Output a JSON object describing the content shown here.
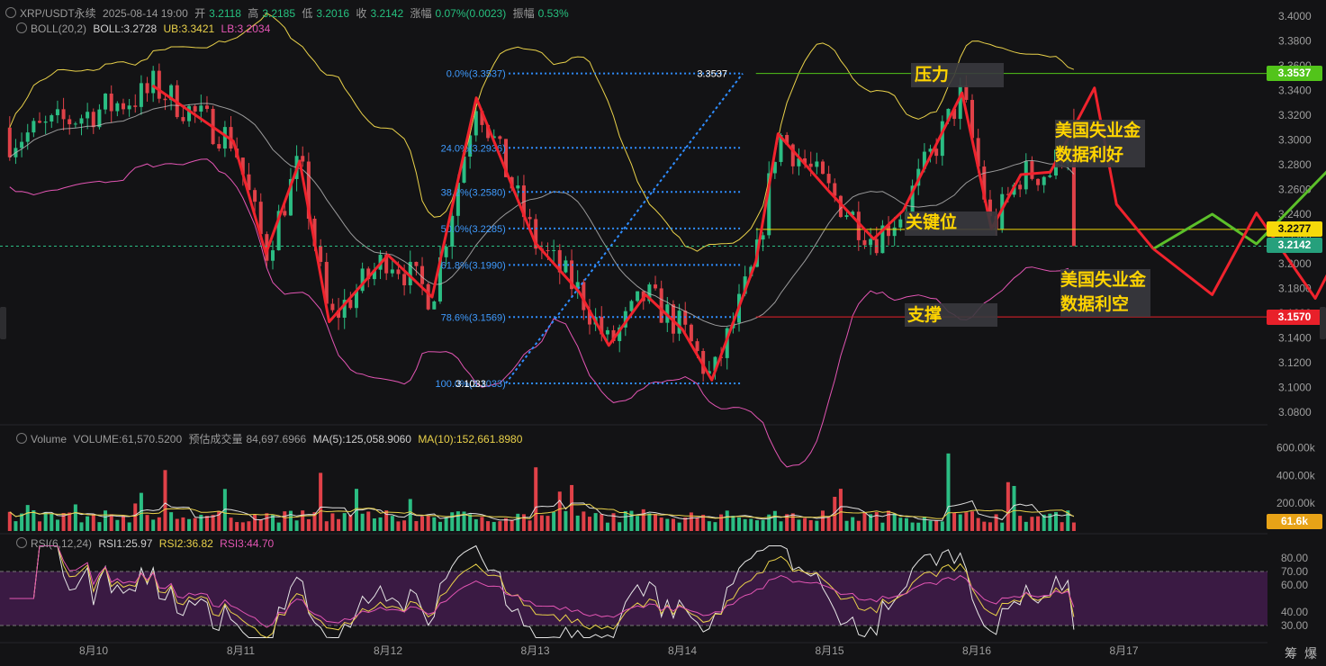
{
  "header": {
    "symbol": "XRP/USDT永续",
    "datetime": "2025-08-14 19:00",
    "open_label": "开",
    "open": "3.2118",
    "high_label": "高",
    "high": "3.2185",
    "low_label": "低",
    "low": "3.2016",
    "close_label": "收",
    "close": "3.2142",
    "change_label": "涨幅",
    "change": "0.07%(0.0023)",
    "amp_label": "振幅",
    "amp": "0.53%"
  },
  "boll": {
    "name": "BOLL(20,2)",
    "mid": "BOLL:3.2728",
    "ub": "UB:3.3421",
    "lb": "LB:3.2034"
  },
  "volume_header": {
    "name": "Volume",
    "volume": "VOLUME:61,570.5200",
    "est_label": "预估成交量",
    "est": "84,697.6966",
    "ma5": "MA(5):125,058.9060",
    "ma10": "MA(10):152,661.8980"
  },
  "rsi_header": {
    "name": "RSI(6,12,24)",
    "rsi1": "RSI1:25.97",
    "rsi2": "RSI2:36.82",
    "rsi3": "RSI3:44.70"
  },
  "annotations": {
    "resistance": "压力",
    "key_level": "关键位",
    "support": "支撑",
    "bullish_line1": "美国失业金",
    "bullish_line2": "数据利好",
    "bearish_line1": "美国失业金",
    "bearish_line2": "数据利空"
  },
  "price_tags": {
    "resistance": "3.3537",
    "key_level": "3.2277",
    "current": "3.2142",
    "support": "3.1570",
    "volume": "61.6k"
  },
  "toolbar": {
    "btn1": "筹",
    "btn2": "爆"
  },
  "colors": {
    "background": "#131315",
    "up_candle": "#2bbd83",
    "down_candle": "#e04148",
    "zigzag": "#f0232d",
    "fib_line": "#2f8dff",
    "boll_mid": "#bdbdbd",
    "boll_upper": "#e9d14a",
    "boll_lower": "#e255b3",
    "annotation_text": "#ffd400",
    "bull_path": "#5cc02a",
    "bear_path": "#f0232d",
    "resistance_tag": "#52c41a",
    "key_tag": "#f5d90a",
    "current_tag": "#26a07c",
    "support_tag": "#e8202a",
    "volume_tag": "#e8a317",
    "rsi_band": "#3a1a43"
  },
  "chart_data": [
    {
      "type": "candlestick",
      "title": "XRP/USDT永续",
      "price_axis": [
        "3.4000",
        "3.3800",
        "3.3600",
        "3.3400",
        "3.3200",
        "3.3000",
        "3.2800",
        "3.2600",
        "3.2400",
        "3.2200",
        "3.2000",
        "3.1800",
        "3.1600",
        "3.1400",
        "3.1200",
        "3.1000",
        "3.0800"
      ],
      "ylim": [
        3.076,
        3.404
      ],
      "x_tick_labels": [
        "8月10",
        "8月11",
        "8月12",
        "8月13",
        "8月14",
        "8月15",
        "8月16",
        "8月17"
      ],
      "fibonacci": [
        {
          "label": "0.0%(3.3537)",
          "value": 3.3537
        },
        {
          "label": "24.0%(3.2936)",
          "value": 3.2936
        },
        {
          "label": "38.2%(3.2580)",
          "value": 3.258
        },
        {
          "label": "50.0%(3.2285)",
          "value": 3.2285
        },
        {
          "label": "61.8%(3.1990)",
          "value": 3.199
        },
        {
          "label": "78.6%(3.1569)",
          "value": 3.1569
        },
        {
          "label": "100.0%(3.1033)",
          "value": 3.1033
        }
      ],
      "swing_high_label": "3.3537",
      "swing_low_label": "3.1033",
      "horizontal_levels": [
        {
          "name": "resistance",
          "value": 3.3537
        },
        {
          "name": "key_level",
          "value": 3.2277
        },
        {
          "name": "current",
          "value": 3.2142
        },
        {
          "name": "support",
          "value": 3.157
        }
      ],
      "zigzag": [
        {
          "t": 0.4,
          "v": 3.344
        },
        {
          "t": 0.95,
          "v": 3.299
        },
        {
          "t": 1.17,
          "v": 3.208
        },
        {
          "t": 1.4,
          "v": 3.283
        },
        {
          "t": 1.6,
          "v": 3.153
        },
        {
          "t": 2.0,
          "v": 3.207
        },
        {
          "t": 2.3,
          "v": 3.173
        },
        {
          "t": 2.6,
          "v": 3.334
        },
        {
          "t": 3.0,
          "v": 3.217
        },
        {
          "t": 3.3,
          "v": 3.177
        },
        {
          "t": 3.5,
          "v": 3.134
        },
        {
          "t": 3.75,
          "v": 3.175
        },
        {
          "t": 4.0,
          "v": 3.147
        },
        {
          "t": 4.2,
          "v": 3.106
        },
        {
          "t": 4.5,
          "v": 3.202
        },
        {
          "t": 4.65,
          "v": 3.305
        },
        {
          "t": 5.0,
          "v": 3.258
        },
        {
          "t": 5.3,
          "v": 3.22
        },
        {
          "t": 5.5,
          "v": 3.243
        },
        {
          "t": 5.9,
          "v": 3.338
        },
        {
          "t": 6.1,
          "v": 3.228
        },
        {
          "t": 6.3,
          "v": 3.272
        },
        {
          "t": 6.5,
          "v": 3.274
        },
        {
          "t": 6.8,
          "v": 3.342
        },
        {
          "t": 6.95,
          "v": 3.248
        },
        {
          "t": 7.2,
          "v": 3.212
        }
      ],
      "scenarios": [
        {
          "name": "bullish",
          "points": [
            {
              "t": 7.2,
              "v": 3.212
            },
            {
              "t": 7.6,
              "v": 3.24
            },
            {
              "t": 7.9,
              "v": 3.216
            },
            {
              "t": 8.4,
              "v": 3.277
            },
            {
              "t": 8.6,
              "v": 3.212
            },
            {
              "t": 9.3,
              "v": 3.362
            }
          ]
        },
        {
          "name": "bearish",
          "points": [
            {
              "t": 7.2,
              "v": 3.212
            },
            {
              "t": 7.6,
              "v": 3.175
            },
            {
              "t": 7.9,
              "v": 3.241
            },
            {
              "t": 8.3,
              "v": 3.172
            },
            {
              "t": 8.65,
              "v": 3.254
            },
            {
              "t": 9.0,
              "v": 3.09
            }
          ]
        }
      ]
    },
    {
      "type": "bar",
      "title": "Volume",
      "axis": [
        "600.00k",
        "400.00k",
        "200.00k"
      ],
      "ylim": [
        0,
        650000
      ]
    },
    {
      "type": "line",
      "title": "RSI(6,12,24)",
      "axis": [
        "80.00",
        "70.00",
        "60.00",
        "40.00",
        "30.00"
      ],
      "ylim": [
        20,
        90
      ],
      "band": [
        30,
        70
      ]
    }
  ]
}
